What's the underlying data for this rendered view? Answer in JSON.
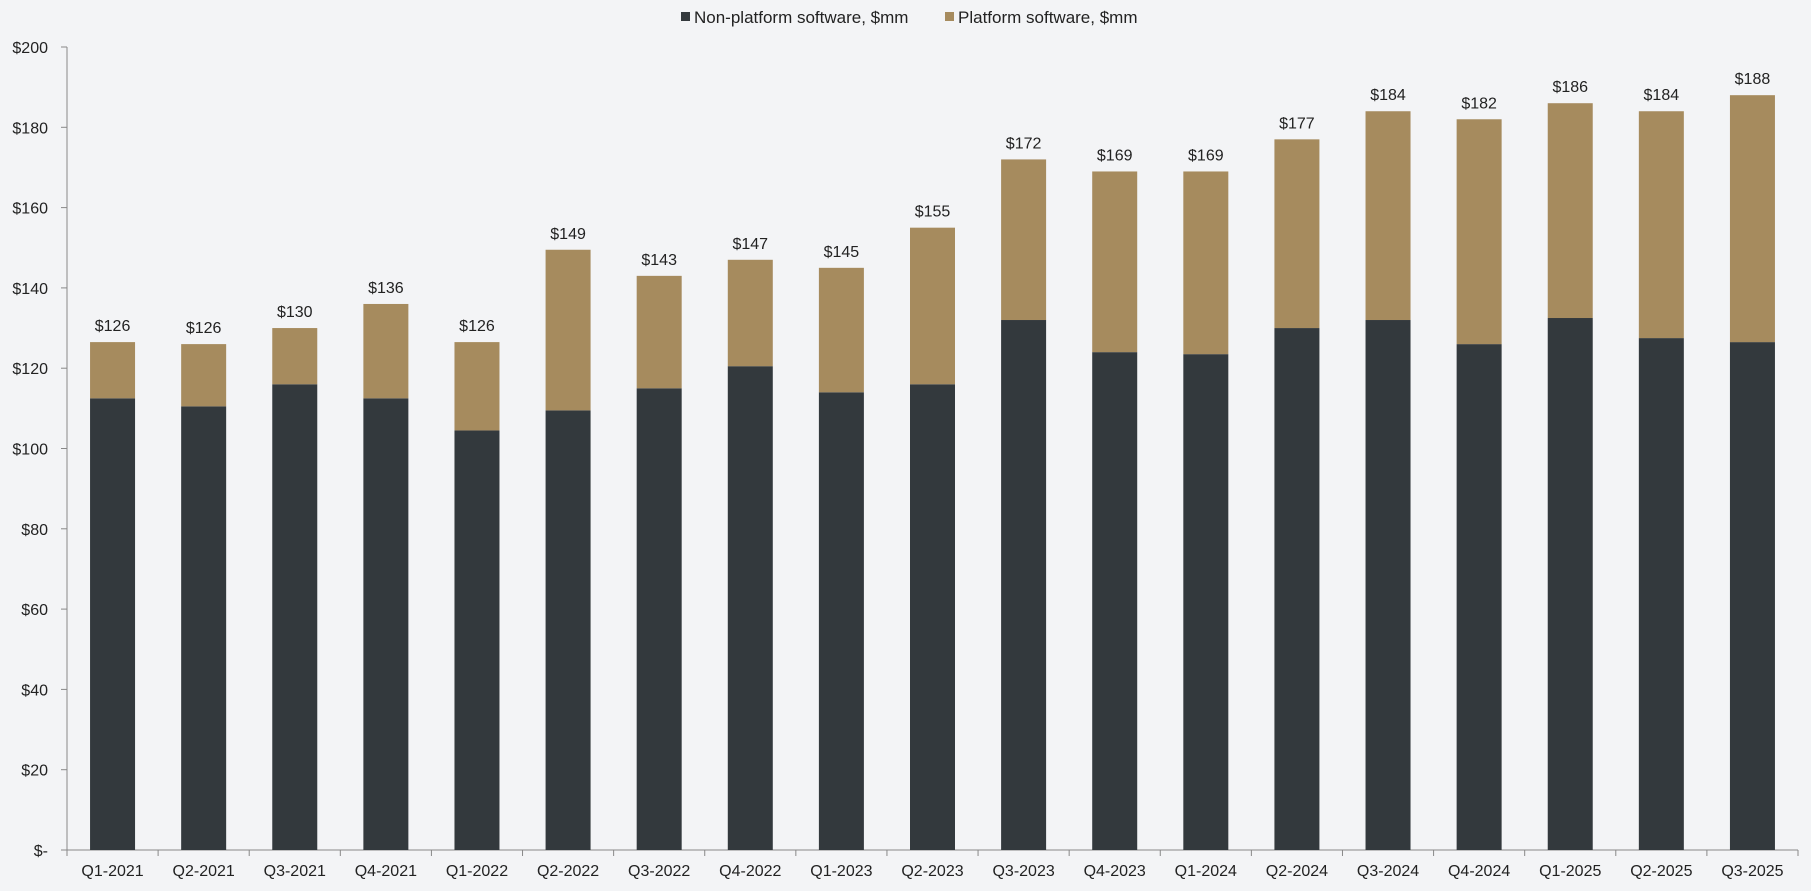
{
  "chart_data": {
    "type": "bar",
    "stacked": true,
    "title": "",
    "xlabel": "",
    "ylabel": "",
    "ylim": [
      0,
      200
    ],
    "grid": false,
    "legend_position": "top-center",
    "categories": [
      "Q1-2021",
      "Q2-2021",
      "Q3-2021",
      "Q4-2021",
      "Q1-2022",
      "Q2-2022",
      "Q3-2022",
      "Q4-2022",
      "Q1-2023",
      "Q2-2023",
      "Q3-2023",
      "Q4-2023",
      "Q1-2024",
      "Q2-2024",
      "Q3-2024",
      "Q4-2024",
      "Q1-2025",
      "Q2-2025",
      "Q3-2025"
    ],
    "y_ticks": [
      {
        "value": 0,
        "label": "$-"
      },
      {
        "value": 20,
        "label": "$20"
      },
      {
        "value": 40,
        "label": "$40"
      },
      {
        "value": 60,
        "label": "$60"
      },
      {
        "value": 80,
        "label": "$80"
      },
      {
        "value": 100,
        "label": "$100"
      },
      {
        "value": 120,
        "label": "$120"
      },
      {
        "value": 140,
        "label": "$140"
      },
      {
        "value": 160,
        "label": "$160"
      },
      {
        "value": 180,
        "label": "$180"
      },
      {
        "value": 200,
        "label": "$200"
      }
    ],
    "series": [
      {
        "name": "Non-platform software, $mm",
        "color": "#33393d",
        "values": [
          112.5,
          110.5,
          116,
          112.5,
          104.5,
          109.5,
          115,
          120.5,
          114,
          116,
          132,
          124,
          123.5,
          130,
          132,
          126,
          132.5,
          127.5,
          126.5
        ]
      },
      {
        "name": "Platform software, $mm",
        "color": "#a68b5e",
        "values": [
          14,
          15.5,
          14,
          23.5,
          22,
          40,
          28,
          26.5,
          31,
          39,
          40,
          45,
          45.5,
          47,
          52,
          56,
          53.5,
          56.5,
          61.5
        ]
      }
    ],
    "totals": [
      126,
      126,
      130,
      136,
      126,
      149,
      143,
      147,
      145,
      155,
      172,
      169,
      169,
      177,
      184,
      182,
      186,
      184,
      188
    ],
    "total_labels": [
      "$126",
      "$126",
      "$130",
      "$136",
      "$126",
      "$149",
      "$143",
      "$147",
      "$145",
      "$155",
      "$172",
      "$169",
      "$169",
      "$177",
      "$184",
      "$182",
      "$186",
      "$184",
      "$188"
    ],
    "axis_color": "#888888",
    "text_color": "#222222",
    "background": "#f3f4f6"
  }
}
